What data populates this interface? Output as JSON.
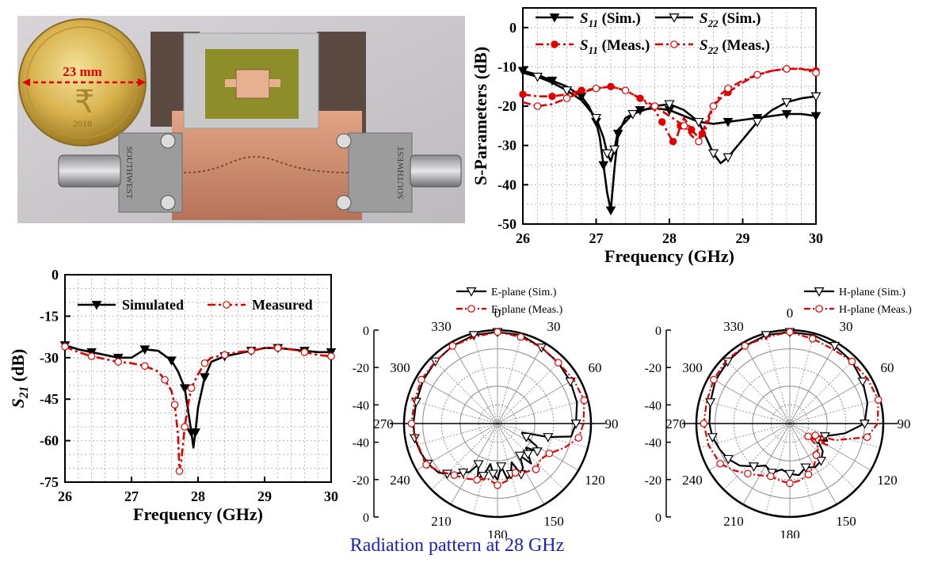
{
  "colors": {
    "sim": "#000000",
    "meas": "#e00000",
    "caption": "#1c21c0"
  },
  "photo": {
    "coin_label": "23 mm",
    "coin_year": "2018",
    "connector_left": "SOUTHWEST",
    "connector_right": "SOUTHWEST"
  },
  "caption": "Radiation pattern at 28 GHz",
  "chart_data": [
    {
      "type": "line",
      "xlabel": "Frequency (GHz)",
      "ylabel": "S-Parameters (dB)",
      "xlim": [
        26,
        30
      ],
      "ylim": [
        -50,
        5
      ],
      "xticks": [
        "26",
        "27",
        "28",
        "29",
        "30"
      ],
      "yticks": [
        "0",
        "-10",
        "-20",
        "-30",
        "-40",
        "-50"
      ],
      "grid": true,
      "legend": "top",
      "legend_labels": [
        "S11 (Sim.)",
        "S22 (Sim.)",
        "S11 (Meas.)",
        "S22 (Meas.)"
      ],
      "series": [
        {
          "name": "S11 (Sim.)",
          "x": [
            26,
            26.2,
            26.4,
            26.6,
            26.8,
            26.9,
            27.0,
            27.05,
            27.1,
            27.15,
            27.2,
            27.25,
            27.3,
            27.4,
            27.6,
            27.8,
            28.0,
            28.2,
            28.4,
            28.6,
            28.8,
            29.0,
            29.2,
            29.4,
            29.6,
            29.8,
            30
          ],
          "y": [
            -11,
            -12,
            -13.5,
            -15,
            -17.5,
            -20,
            -24,
            -28,
            -35,
            -42,
            -46.5,
            -36,
            -27,
            -23,
            -21,
            -20.5,
            -21,
            -22.5,
            -24,
            -24.5,
            -24,
            -23.5,
            -23,
            -22.5,
            -22,
            -22,
            -22.5
          ]
        },
        {
          "name": "S22 (Sim.)",
          "x": [
            26,
            26.2,
            26.4,
            26.6,
            26.8,
            27.0,
            27.1,
            27.15,
            27.2,
            27.25,
            27.3,
            27.5,
            27.8,
            28.0,
            28.2,
            28.4,
            28.5,
            28.6,
            28.7,
            28.8,
            29.0,
            29.2,
            29.4,
            29.6,
            29.8,
            30
          ],
          "y": [
            -11.5,
            -12.5,
            -14,
            -16,
            -18.5,
            -23,
            -28,
            -32,
            -34,
            -31,
            -26,
            -22,
            -20,
            -19.5,
            -21,
            -24,
            -28,
            -32,
            -34.5,
            -33,
            -28.5,
            -24,
            -21,
            -19,
            -18,
            -17.5
          ]
        },
        {
          "name": "S11 (Meas.)",
          "x": [
            26,
            26.2,
            26.4,
            26.6,
            26.8,
            27.0,
            27.2,
            27.4,
            27.6,
            27.8,
            27.9,
            28.0,
            28.05,
            28.1,
            28.15,
            28.2,
            28.3,
            28.4,
            28.45,
            28.5,
            28.6,
            28.7,
            28.8,
            29.0,
            29.2,
            29.4,
            29.6,
            29.8,
            30
          ],
          "y": [
            -17,
            -17.5,
            -17.5,
            -17,
            -16,
            -15.5,
            -15,
            -16,
            -18,
            -21,
            -24,
            -27.5,
            -29,
            -28,
            -25,
            -23,
            -26,
            -28,
            -27,
            -24,
            -20,
            -18,
            -16.5,
            -14,
            -12,
            -11,
            -10.5,
            -10.5,
            -11
          ]
        },
        {
          "name": "S22 (Meas.)",
          "x": [
            26,
            26.2,
            26.4,
            26.6,
            26.8,
            27.0,
            27.2,
            27.4,
            27.6,
            27.8,
            28.0,
            28.2,
            28.3,
            28.4,
            28.5,
            28.6,
            28.7,
            28.8,
            29.0,
            29.2,
            29.4,
            29.6,
            29.8,
            30
          ],
          "y": [
            -19,
            -20,
            -19.5,
            -18,
            -16.5,
            -15.5,
            -15,
            -16,
            -18,
            -20,
            -22.5,
            -25,
            -27.5,
            -29,
            -25.5,
            -20,
            -17,
            -15.5,
            -13.5,
            -12,
            -11,
            -10.5,
            -10.5,
            -11.5
          ]
        }
      ]
    },
    {
      "type": "line",
      "xlabel": "Frequency (GHz)",
      "ylabel": "S21 (dB)",
      "xlim": [
        26,
        30
      ],
      "ylim": [
        -75,
        0
      ],
      "xticks": [
        "26",
        "27",
        "28",
        "29",
        "30"
      ],
      "yticks": [
        "0",
        "-15",
        "-30",
        "-45",
        "-60",
        "-75"
      ],
      "grid": true,
      "legend": "top",
      "legend_labels": [
        "Simulated",
        "Measured"
      ],
      "series": [
        {
          "name": "Simulated",
          "x": [
            26,
            26.2,
            26.4,
            26.6,
            26.8,
            27.0,
            27.2,
            27.4,
            27.6,
            27.7,
            27.8,
            27.85,
            27.9,
            27.93,
            27.96,
            28.0,
            28.1,
            28.2,
            28.4,
            28.6,
            28.8,
            29.0,
            29.2,
            29.4,
            29.6,
            29.8,
            30
          ],
          "y": [
            -25.5,
            -27,
            -28,
            -29,
            -30,
            -30,
            -27,
            -27.5,
            -31,
            -35,
            -41,
            -49,
            -57,
            -62.5,
            -57,
            -48,
            -37,
            -31.5,
            -29.5,
            -28.5,
            -27.5,
            -26.5,
            -26.5,
            -27,
            -27.5,
            -28,
            -28
          ]
        },
        {
          "name": "Measured",
          "x": [
            26,
            26.2,
            26.4,
            26.6,
            26.8,
            27.0,
            27.2,
            27.4,
            27.5,
            27.6,
            27.65,
            27.7,
            27.72,
            27.75,
            27.8,
            27.85,
            27.9,
            28.0,
            28.1,
            28.2,
            28.4,
            28.6,
            28.8,
            29.0,
            29.2,
            29.4,
            29.6,
            29.8,
            30
          ],
          "y": [
            -26,
            -28,
            -29.5,
            -30.5,
            -31.5,
            -32,
            -33,
            -35,
            -38,
            -42,
            -47,
            -58,
            -71,
            -67,
            -55,
            -47,
            -41,
            -36,
            -32,
            -30,
            -29,
            -28,
            -27.5,
            -26.5,
            -26.5,
            -27,
            -28,
            -29,
            -29.5
          ]
        }
      ]
    },
    {
      "type": "polar",
      "angle_ticks": [
        "0",
        "30",
        "60",
        "90",
        "120",
        "150",
        "180",
        "210",
        "240",
        "270",
        "300",
        "330"
      ],
      "radial_ticks": [
        "0",
        "-20",
        "-40",
        "-40",
        "-20",
        "0"
      ],
      "rlim": [
        -50,
        0
      ],
      "legend": "top-right",
      "legend_labels": [
        "E-plane (Sim.)",
        "E-plane (Meas.)"
      ],
      "series": [
        {
          "name": "E-plane (Sim.)",
          "theta": [
            0,
            15,
            30,
            45,
            60,
            75,
            90,
            100,
            105,
            110,
            115,
            120,
            125,
            130,
            135,
            140,
            145,
            150,
            155,
            160,
            165,
            170,
            175,
            180,
            185,
            190,
            195,
            200,
            205,
            210,
            215,
            220,
            225,
            230,
            240,
            250,
            260,
            270,
            285,
            300,
            315,
            330,
            345,
            360
          ],
          "r": [
            -1,
            -1,
            -3,
            -4,
            -5,
            -6,
            -8,
            -10,
            -22,
            -36,
            -33,
            -26,
            -24,
            -30,
            -27,
            -22,
            -29,
            -23,
            -20,
            -28,
            -22,
            -20,
            -27,
            -20,
            -23,
            -28,
            -21,
            -19,
            -26,
            -20,
            -18,
            -15,
            -12,
            -9,
            -7,
            -6,
            -5,
            -5,
            -5,
            -4,
            -3,
            -2,
            -1,
            -1
          ]
        },
        {
          "name": "E-plane (Meas.)",
          "theta": [
            0,
            15,
            30,
            45,
            60,
            75,
            90,
            100,
            110,
            120,
            130,
            140,
            150,
            160,
            170,
            180,
            190,
            200,
            210,
            220,
            230,
            240,
            255,
            270,
            285,
            300,
            315,
            330,
            345,
            360
          ],
          "r": [
            -1,
            -2,
            -3,
            -4,
            -3,
            -2,
            -4,
            -6,
            -12,
            -18,
            -20,
            -18,
            -20,
            -22,
            -19,
            -17,
            -20,
            -18,
            -16,
            -14,
            -10,
            -6,
            -6,
            -4,
            -4,
            -3,
            -3,
            -2,
            -2,
            -1
          ]
        }
      ]
    },
    {
      "type": "polar",
      "angle_ticks": [
        "0",
        "30",
        "60",
        "90",
        "120",
        "150",
        "180",
        "210",
        "240",
        "270",
        "300",
        "330"
      ],
      "radial_ticks": [
        "0",
        "-20",
        "-40",
        "-40",
        "-20",
        "0"
      ],
      "rlim": [
        -50,
        0
      ],
      "legend": "top-right",
      "legend_labels": [
        "H-plane (Sim.)",
        "H-plane (Meas.)"
      ],
      "series": [
        {
          "name": "H-plane (Sim.)",
          "theta": [
            0,
            15,
            30,
            45,
            60,
            75,
            90,
            100,
            110,
            115,
            120,
            130,
            140,
            150,
            160,
            170,
            180,
            190,
            200,
            210,
            220,
            230,
            240,
            250,
            260,
            270,
            285,
            300,
            315,
            330,
            345,
            360
          ],
          "r": [
            -1,
            -1,
            -2,
            -3,
            -5,
            -7,
            -10,
            -20,
            -30,
            -28,
            -33,
            -27,
            -24,
            -23,
            -25,
            -22,
            -23,
            -25,
            -22,
            -24,
            -20,
            -15,
            -12,
            -10,
            -8,
            -7,
            -6,
            -4,
            -3,
            -2,
            -1,
            -1
          ]
        },
        {
          "name": "H-plane (Meas.)",
          "theta": [
            0,
            15,
            30,
            45,
            60,
            75,
            90,
            100,
            110,
            115,
            120,
            125,
            130,
            140,
            150,
            160,
            170,
            180,
            190,
            200,
            210,
            220,
            230,
            240,
            255,
            270,
            285,
            300,
            315,
            330,
            345,
            360
          ],
          "r": [
            -1,
            -3,
            -4,
            -3,
            -2,
            -1,
            -3,
            -8,
            -24,
            -35,
            -26,
            -38,
            -30,
            -28,
            -24,
            -21,
            -19,
            -18,
            -19,
            -20,
            -18,
            -15,
            -11,
            -7,
            -5,
            -4,
            -4,
            -3,
            -2,
            -2,
            -2,
            -1
          ]
        }
      ]
    }
  ]
}
